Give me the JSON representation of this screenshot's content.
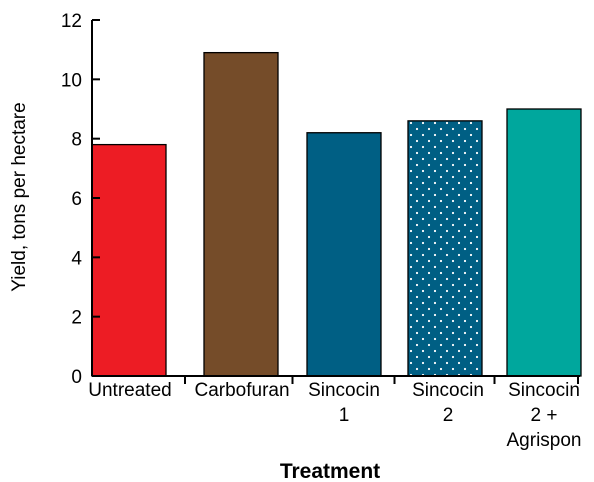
{
  "chart_data": {
    "type": "bar",
    "title": "",
    "xlabel": "Treatment",
    "ylabel": "Yield, tons per hectare",
    "ylim": [
      0,
      12
    ],
    "yticks": [
      0,
      2,
      4,
      6,
      8,
      10,
      12
    ],
    "grid": false,
    "legend": "none",
    "categories": [
      {
        "lines": [
          "Untreated"
        ],
        "value": 7.8,
        "color": "#ed1c24",
        "pattern": "solid"
      },
      {
        "lines": [
          "Carbofuran"
        ],
        "value": 10.9,
        "color": "#754c29",
        "pattern": "solid"
      },
      {
        "lines": [
          "Sincocin",
          "1"
        ],
        "value": 8.2,
        "color": "#005f84",
        "pattern": "solid"
      },
      {
        "lines": [
          "Sincocin",
          "2"
        ],
        "value": 8.6,
        "color": "#005f84",
        "pattern": "dotted"
      },
      {
        "lines": [
          "Sincocin",
          "2 +",
          "Agrispon"
        ],
        "value": 9.0,
        "color": "#00a79d",
        "pattern": "solid"
      }
    ]
  }
}
